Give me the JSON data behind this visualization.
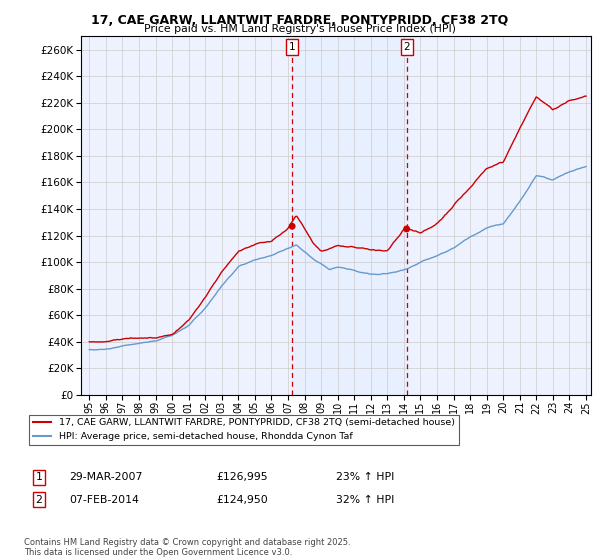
{
  "title": "17, CAE GARW, LLANTWIT FARDRE, PONTYPRIDD, CF38 2TQ",
  "subtitle": "Price paid vs. HM Land Registry's House Price Index (HPI)",
  "ylim": [
    0,
    270000
  ],
  "yticks": [
    0,
    20000,
    40000,
    60000,
    80000,
    100000,
    120000,
    140000,
    160000,
    180000,
    200000,
    220000,
    240000,
    260000
  ],
  "x_start_year": 1995,
  "x_end_year": 2025,
  "sale1_price": 126995,
  "sale2_price": 124950,
  "red_line_color": "#cc0000",
  "blue_line_color": "#6699cc",
  "vline_color": "#cc0000",
  "shade_color": "#ddeeff",
  "grid_color": "#cccccc",
  "background_color": "#ffffff",
  "plot_bg_color": "#eef2ff",
  "legend_label_red": "17, CAE GARW, LLANTWIT FARDRE, PONTYPRIDD, CF38 2TQ (semi-detached house)",
  "legend_label_blue": "HPI: Average price, semi-detached house, Rhondda Cynon Taf",
  "footer": "Contains HM Land Registry data © Crown copyright and database right 2025.\nThis data is licensed under the Open Government Licence v3.0.",
  "table_row1": [
    "1",
    "29-MAR-2007",
    "£126,995",
    "23% ↑ HPI"
  ],
  "table_row2": [
    "2",
    "07-FEB-2014",
    "£124,950",
    "32% ↑ HPI"
  ]
}
